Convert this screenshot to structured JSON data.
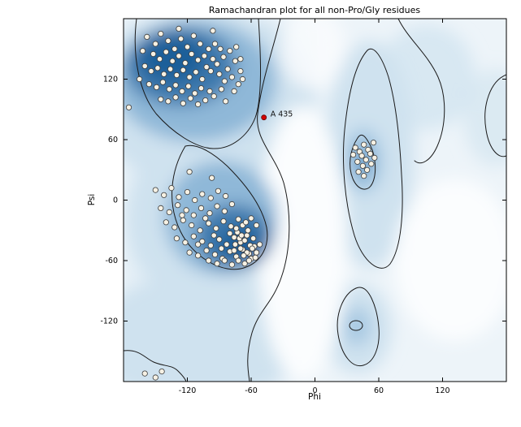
{
  "chart_data": {
    "type": "scatter",
    "title": "Ramachandran plot for all non-Pro/Gly residues",
    "xlabel": "Phi",
    "ylabel": "Psi",
    "xlim": [
      -180,
      180
    ],
    "ylim": [
      -180,
      180
    ],
    "xticks": [
      -120,
      -60,
      0,
      60,
      120
    ],
    "yticks": [
      -120,
      -60,
      0,
      60,
      120
    ],
    "grid": false,
    "legend": "none",
    "background": "blue density map of favored/allowed Ramachandran regions with black contour outlines",
    "colors": {
      "plot_bg": "#edf4f9",
      "density_light": "#cfe2ef",
      "density_mid": "#8fb8d8",
      "density_core": "#3c79ad",
      "density_dark": "#1d5f99",
      "contour": "#1a1a1a",
      "point_fill": "#f6f1e4",
      "point_stroke": "#3c3c3c",
      "highlight": "#d40000"
    },
    "points": [
      [
        -158,
        162
      ],
      [
        -150,
        155
      ],
      [
        -145,
        165
      ],
      [
        -138,
        158
      ],
      [
        -132,
        150
      ],
      [
        -126,
        160
      ],
      [
        -120,
        152
      ],
      [
        -114,
        163
      ],
      [
        -108,
        155
      ],
      [
        -100,
        150
      ],
      [
        -152,
        145
      ],
      [
        -146,
        140
      ],
      [
        -140,
        147
      ],
      [
        -134,
        138
      ],
      [
        -128,
        143
      ],
      [
        -122,
        136
      ],
      [
        -116,
        145
      ],
      [
        -110,
        139
      ],
      [
        -104,
        143
      ],
      [
        -96,
        140
      ],
      [
        -160,
        133
      ],
      [
        -154,
        128
      ],
      [
        -148,
        131
      ],
      [
        -142,
        125
      ],
      [
        -136,
        130
      ],
      [
        -130,
        124
      ],
      [
        -124,
        129
      ],
      [
        -118,
        122
      ],
      [
        -112,
        127
      ],
      [
        -106,
        120
      ],
      [
        -156,
        115
      ],
      [
        -149,
        112
      ],
      [
        -143,
        117
      ],
      [
        -137,
        110
      ],
      [
        -131,
        114
      ],
      [
        -125,
        108
      ],
      [
        -119,
        113
      ],
      [
        -113,
        106
      ],
      [
        -107,
        111
      ],
      [
        -99,
        108
      ],
      [
        -145,
        100
      ],
      [
        -138,
        98
      ],
      [
        -131,
        102
      ],
      [
        -124,
        96
      ],
      [
        -117,
        101
      ],
      [
        -110,
        95
      ],
      [
        -103,
        99
      ],
      [
        -95,
        103
      ],
      [
        -88,
        110
      ],
      [
        -90,
        125
      ],
      [
        -85,
        118
      ],
      [
        -82,
        130
      ],
      [
        -78,
        122
      ],
      [
        -92,
        135
      ],
      [
        -86,
        142
      ],
      [
        -80,
        148
      ],
      [
        -75,
        138
      ],
      [
        -98,
        128
      ],
      [
        -94,
        155
      ],
      [
        -89,
        150
      ],
      [
        -70,
        128
      ],
      [
        -72,
        115
      ],
      [
        -76,
        108
      ],
      [
        -84,
        98
      ],
      [
        -162,
        148
      ],
      [
        -165,
        120
      ],
      [
        -70,
        140
      ],
      [
        -74,
        152
      ],
      [
        -68,
        120
      ],
      [
        -102,
        132
      ],
      [
        -128,
        170
      ],
      [
        -96,
        168
      ],
      [
        -175,
        92
      ],
      [
        -150,
        10
      ],
      [
        -142,
        5
      ],
      [
        -135,
        12
      ],
      [
        -128,
        3
      ],
      [
        -120,
        8
      ],
      [
        -113,
        0
      ],
      [
        -106,
        6
      ],
      [
        -98,
        2
      ],
      [
        -91,
        9
      ],
      [
        -84,
        4
      ],
      [
        -145,
        -8
      ],
      [
        -137,
        -12
      ],
      [
        -129,
        -5
      ],
      [
        -121,
        -10
      ],
      [
        -114,
        -15
      ],
      [
        -107,
        -8
      ],
      [
        -99,
        -13
      ],
      [
        -92,
        -6
      ],
      [
        -85,
        -11
      ],
      [
        -78,
        -4
      ],
      [
        -140,
        -22
      ],
      [
        -132,
        -27
      ],
      [
        -124,
        -20
      ],
      [
        -116,
        -25
      ],
      [
        -108,
        -30
      ],
      [
        -100,
        -23
      ],
      [
        -93,
        -28
      ],
      [
        -86,
        -21
      ],
      [
        -79,
        -26
      ],
      [
        -72,
        -19
      ],
      [
        -130,
        -38
      ],
      [
        -122,
        -42
      ],
      [
        -114,
        -36
      ],
      [
        -106,
        -41
      ],
      [
        -98,
        -45
      ],
      [
        -90,
        -39
      ],
      [
        -83,
        -44
      ],
      [
        -76,
        -37
      ],
      [
        -70,
        -42
      ],
      [
        -64,
        -35
      ],
      [
        -118,
        -52
      ],
      [
        -110,
        -55
      ],
      [
        -102,
        -50
      ],
      [
        -94,
        -54
      ],
      [
        -87,
        -58
      ],
      [
        -80,
        -51
      ],
      [
        -74,
        -56
      ],
      [
        -68,
        -49
      ],
      [
        -62,
        -53
      ],
      [
        -57,
        -46
      ],
      [
        -100,
        -60
      ],
      [
        -92,
        -63
      ],
      [
        -85,
        -60
      ],
      [
        -78,
        -64
      ],
      [
        -72,
        -60
      ],
      [
        -66,
        -63
      ],
      [
        -60,
        -58
      ],
      [
        -55,
        -52
      ],
      [
        -52,
        -44
      ],
      [
        -58,
        -38
      ],
      [
        -63,
        -30
      ],
      [
        -68,
        -25
      ],
      [
        -73,
        -32
      ],
      [
        -66,
        -40
      ],
      [
        -61,
        -45
      ],
      [
        -70,
        -48
      ],
      [
        -75,
        -44
      ],
      [
        -64,
        -52
      ],
      [
        -59,
        -48
      ],
      [
        -67,
        -55
      ],
      [
        -71,
        -38
      ],
      [
        -76,
        -50
      ],
      [
        -62,
        -60
      ],
      [
        -56,
        -57
      ],
      [
        -69,
        -35
      ],
      [
        -74,
        -28
      ],
      [
        -65,
        -22
      ],
      [
        -60,
        -18
      ],
      [
        -55,
        -25
      ],
      [
        -80,
        -33
      ],
      [
        -88,
        -48
      ],
      [
        -95,
        -35
      ],
      [
        -103,
        -18
      ],
      [
        -110,
        -44
      ],
      [
        -125,
        -15
      ],
      [
        -118,
        28
      ],
      [
        -97,
        22
      ],
      [
        38,
        52
      ],
      [
        42,
        48
      ],
      [
        46,
        55
      ],
      [
        50,
        50
      ],
      [
        44,
        44
      ],
      [
        48,
        40
      ],
      [
        52,
        46
      ],
      [
        40,
        38
      ],
      [
        45,
        34
      ],
      [
        49,
        30
      ],
      [
        53,
        36
      ],
      [
        41,
        28
      ],
      [
        46,
        24
      ],
      [
        56,
        42
      ],
      [
        36,
        45
      ],
      [
        55,
        57
      ],
      [
        -160,
        -172
      ],
      [
        -150,
        -176
      ],
      [
        -144,
        -170
      ]
    ],
    "highlight_point": {
      "phi": -48,
      "psi": 82,
      "label": "A 435"
    }
  }
}
